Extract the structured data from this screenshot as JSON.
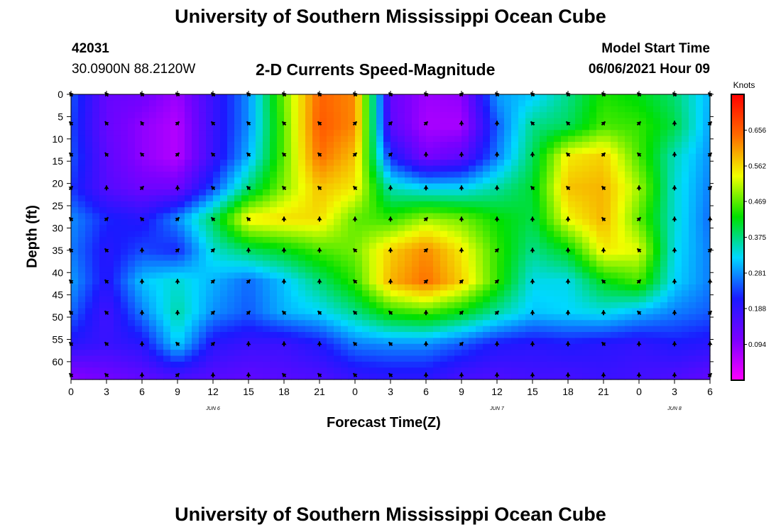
{
  "header": {
    "title": "University of Southern Mississippi Ocean Cube",
    "station_id": "42031",
    "location": "30.0900N  88.2120W",
    "plot_title": "2-D Currents Speed-Magnitude",
    "model_label": "Model Start Time",
    "model_time": "06/06/2021 Hour 09",
    "footer_title": "University of Southern Mississippi Ocean Cube"
  },
  "colors": {
    "c0": "#ff00ff",
    "c1": "#7a00ff",
    "c2": "#1a1aff",
    "c3": "#00d8ff",
    "c4": "#00e000",
    "c5": "#f0ff00",
    "c6": "#ff6a00",
    "c7": "#ff0000",
    "arrow": "#000000",
    "background": "#ffffff"
  },
  "chart_data": {
    "type": "heatmap",
    "title": "2-D Currents Speed-Magnitude",
    "xlabel": "Forecast Time(Z)",
    "ylabel": "Depth (ft)",
    "x_ticks": [
      "0",
      "3",
      "6",
      "9",
      "12",
      "15",
      "18",
      "21",
      "0",
      "3",
      "6",
      "9",
      "12",
      "15",
      "18",
      "21",
      "0",
      "3",
      "6"
    ],
    "x_hours": [
      0,
      3,
      6,
      9,
      12,
      15,
      18,
      21,
      24,
      27,
      30,
      33,
      36,
      39,
      42,
      45,
      48,
      51,
      54
    ],
    "xlim": [
      0,
      54
    ],
    "y_ticks": [
      "0",
      "5",
      "10",
      "15",
      "20",
      "25",
      "30",
      "35",
      "40",
      "45",
      "50",
      "55",
      "60"
    ],
    "y_depths": [
      0,
      5,
      10,
      15,
      20,
      25,
      30,
      35,
      40,
      45,
      50,
      55,
      60
    ],
    "ylim": [
      0,
      64
    ],
    "date_labels": [
      {
        "text": "JUN 6",
        "hour": 12
      },
      {
        "text": "JUN 7",
        "hour": 36
      },
      {
        "text": "JUN 8",
        "hour": 51
      }
    ],
    "colorbar": {
      "unit": "Knots",
      "range": [
        0.0,
        0.75
      ],
      "tick_labels": [
        "0.656",
        "0.562",
        "0.469",
        "0.375",
        "0.281",
        "0.188",
        "0.094"
      ],
      "tick_values": [
        0.656,
        0.562,
        0.469,
        0.375,
        0.281,
        0.188,
        0.094
      ]
    },
    "grid_hours": [
      0,
      3,
      6,
      9,
      12,
      15,
      18,
      21,
      24,
      27,
      30,
      33,
      36,
      39,
      42,
      45,
      48,
      51,
      54
    ],
    "grid_depths": [
      0,
      7,
      14,
      21,
      28,
      35,
      42,
      49,
      56,
      63
    ],
    "speed_grid": [
      [
        0.25,
        0.13,
        0.12,
        0.08,
        0.18,
        0.28,
        0.48,
        0.65,
        0.62,
        0.13,
        0.08,
        0.09,
        0.29,
        0.31,
        0.37,
        0.44,
        0.42,
        0.38,
        0.3
      ],
      [
        0.24,
        0.13,
        0.09,
        0.06,
        0.18,
        0.28,
        0.47,
        0.66,
        0.62,
        0.14,
        0.07,
        0.07,
        0.25,
        0.37,
        0.39,
        0.46,
        0.45,
        0.4,
        0.29
      ],
      [
        0.25,
        0.14,
        0.09,
        0.06,
        0.18,
        0.3,
        0.47,
        0.64,
        0.58,
        0.22,
        0.11,
        0.14,
        0.27,
        0.39,
        0.55,
        0.57,
        0.46,
        0.35,
        0.28
      ],
      [
        0.23,
        0.15,
        0.12,
        0.12,
        0.24,
        0.38,
        0.49,
        0.58,
        0.55,
        0.35,
        0.32,
        0.32,
        0.36,
        0.41,
        0.58,
        0.59,
        0.5,
        0.34,
        0.27
      ],
      [
        0.28,
        0.22,
        0.2,
        0.28,
        0.39,
        0.55,
        0.56,
        0.56,
        0.47,
        0.45,
        0.5,
        0.48,
        0.43,
        0.4,
        0.54,
        0.59,
        0.47,
        0.34,
        0.26
      ],
      [
        0.27,
        0.2,
        0.24,
        0.22,
        0.34,
        0.39,
        0.42,
        0.46,
        0.48,
        0.57,
        0.62,
        0.55,
        0.45,
        0.37,
        0.42,
        0.55,
        0.53,
        0.33,
        0.27
      ],
      [
        0.29,
        0.2,
        0.31,
        0.34,
        0.3,
        0.26,
        0.31,
        0.38,
        0.45,
        0.59,
        0.64,
        0.57,
        0.45,
        0.33,
        0.33,
        0.42,
        0.46,
        0.32,
        0.27
      ],
      [
        0.26,
        0.17,
        0.27,
        0.36,
        0.28,
        0.25,
        0.3,
        0.32,
        0.37,
        0.44,
        0.46,
        0.42,
        0.36,
        0.31,
        0.32,
        0.33,
        0.3,
        0.27,
        0.25
      ],
      [
        0.2,
        0.18,
        0.2,
        0.32,
        0.2,
        0.18,
        0.18,
        0.21,
        0.27,
        0.28,
        0.28,
        0.25,
        0.21,
        0.2,
        0.21,
        0.2,
        0.19,
        0.21,
        0.2
      ],
      [
        0.1,
        0.12,
        0.14,
        0.17,
        0.15,
        0.14,
        0.15,
        0.16,
        0.19,
        0.2,
        0.2,
        0.17,
        0.16,
        0.17,
        0.17,
        0.18,
        0.17,
        0.16,
        0.14
      ]
    ],
    "arrow_hours": [
      0,
      3,
      6,
      9,
      12,
      15,
      18,
      21,
      24,
      27,
      30,
      33,
      36,
      39,
      42,
      45,
      48,
      51,
      54
    ],
    "arrow_depths": [
      0,
      6.5,
      13.5,
      21,
      28,
      35,
      42,
      49,
      56,
      63
    ],
    "arrow_dirs_deg": [
      [
        230,
        230,
        225,
        220,
        225,
        225,
        225,
        225,
        225,
        225,
        225,
        315,
        225,
        225,
        225,
        225,
        225,
        225,
        225
      ],
      [
        225,
        230,
        235,
        315,
        225,
        225,
        225,
        225,
        315,
        315,
        315,
        270,
        270,
        225,
        225,
        315,
        315,
        270,
        315
      ],
      [
        225,
        230,
        225,
        315,
        225,
        225,
        225,
        225,
        315,
        315,
        270,
        270,
        270,
        270,
        225,
        315,
        225,
        270,
        315
      ],
      [
        315,
        270,
        315,
        270,
        225,
        225,
        225,
        225,
        225,
        270,
        270,
        270,
        270,
        225,
        225,
        225,
        270,
        270,
        315
      ],
      [
        225,
        315,
        225,
        315,
        225,
        225,
        270,
        270,
        270,
        270,
        315,
        270,
        270,
        270,
        270,
        225,
        315,
        270,
        270
      ],
      [
        225,
        225,
        270,
        315,
        315,
        270,
        270,
        270,
        225,
        270,
        315,
        270,
        315,
        270,
        270,
        270,
        225,
        270,
        315
      ],
      [
        225,
        225,
        270,
        270,
        315,
        315,
        270,
        270,
        225,
        270,
        315,
        315,
        315,
        270,
        270,
        225,
        315,
        270,
        270
      ],
      [
        225,
        225,
        270,
        270,
        315,
        315,
        225,
        225,
        225,
        225,
        270,
        315,
        315,
        270,
        270,
        270,
        225,
        270,
        315
      ],
      [
        225,
        225,
        270,
        225,
        315,
        270,
        270,
        270,
        225,
        225,
        270,
        315,
        270,
        270,
        270,
        225,
        270,
        270,
        270
      ],
      [
        225,
        225,
        270,
        315,
        270,
        270,
        225,
        225,
        225,
        225,
        270,
        270,
        270,
        270,
        270,
        270,
        270,
        270,
        315
      ]
    ]
  }
}
